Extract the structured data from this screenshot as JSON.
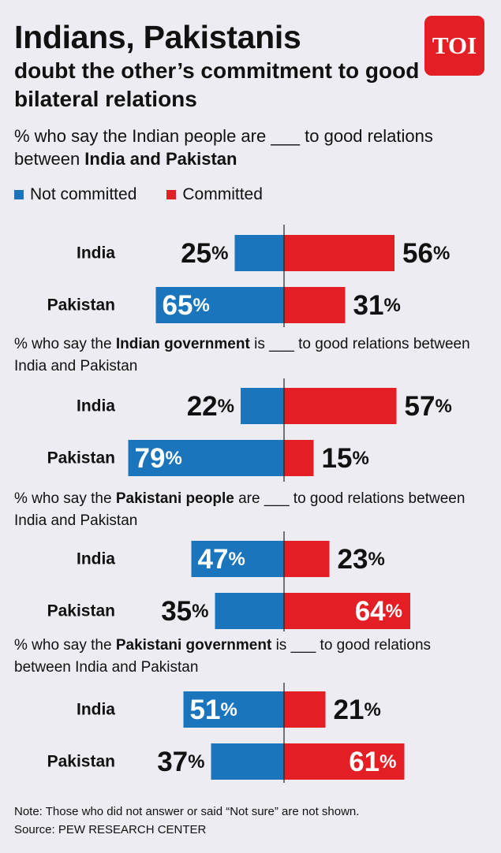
{
  "header": {
    "title": "Indians, Pakistanis",
    "subtitle": "doubt the other’s commitment to good bilateral relations",
    "logo_text": "TOI"
  },
  "chart_data": {
    "type": "bar",
    "layout": "diverging",
    "legend": [
      {
        "label": "Not committed",
        "color": "#1a75bc"
      },
      {
        "label": "Committed",
        "color": "#e31e24"
      }
    ],
    "categories": [
      "India",
      "Pakistan"
    ],
    "panels": [
      {
        "question_parts": [
          {
            "text": "% who say the Indian people are ___ to good relations between ",
            "bold": false
          },
          {
            "text": "India and Pakistan",
            "bold": true
          }
        ],
        "series": [
          {
            "name": "Not committed",
            "values": [
              25,
              65
            ]
          },
          {
            "name": "Committed",
            "values": [
              56,
              31
            ]
          }
        ]
      },
      {
        "question_parts": [
          {
            "text": "% who say the ",
            "bold": false
          },
          {
            "text": "Indian government",
            "bold": true
          },
          {
            "text": " is ___ to good relations between India and Pakistan",
            "bold": false
          }
        ],
        "series": [
          {
            "name": "Not committed",
            "values": [
              22,
              79
            ]
          },
          {
            "name": "Committed",
            "values": [
              57,
              15
            ]
          }
        ]
      },
      {
        "question_parts": [
          {
            "text": "% who say the ",
            "bold": false
          },
          {
            "text": "Pakistani people",
            "bold": true
          },
          {
            "text": " are ___ to good relations between India and Pakistan",
            "bold": false
          }
        ],
        "series": [
          {
            "name": "Not committed",
            "values": [
              47,
              35
            ]
          },
          {
            "name": "Committed",
            "values": [
              23,
              64
            ]
          }
        ]
      },
      {
        "question_parts": [
          {
            "text": "% who say the ",
            "bold": false
          },
          {
            "text": "Pakistani government",
            "bold": true
          },
          {
            "text": " is ___ to good relations between India and Pakistan",
            "bold": false
          }
        ],
        "series": [
          {
            "name": "Not committed",
            "values": [
              51,
              37
            ]
          },
          {
            "name": "Committed",
            "values": [
              21,
              61
            ]
          }
        ]
      }
    ]
  },
  "footer": {
    "note": "Note: Those who did not answer or said “Not sure” are not shown.",
    "source": "Source: PEW RESEARCH CENTER"
  }
}
